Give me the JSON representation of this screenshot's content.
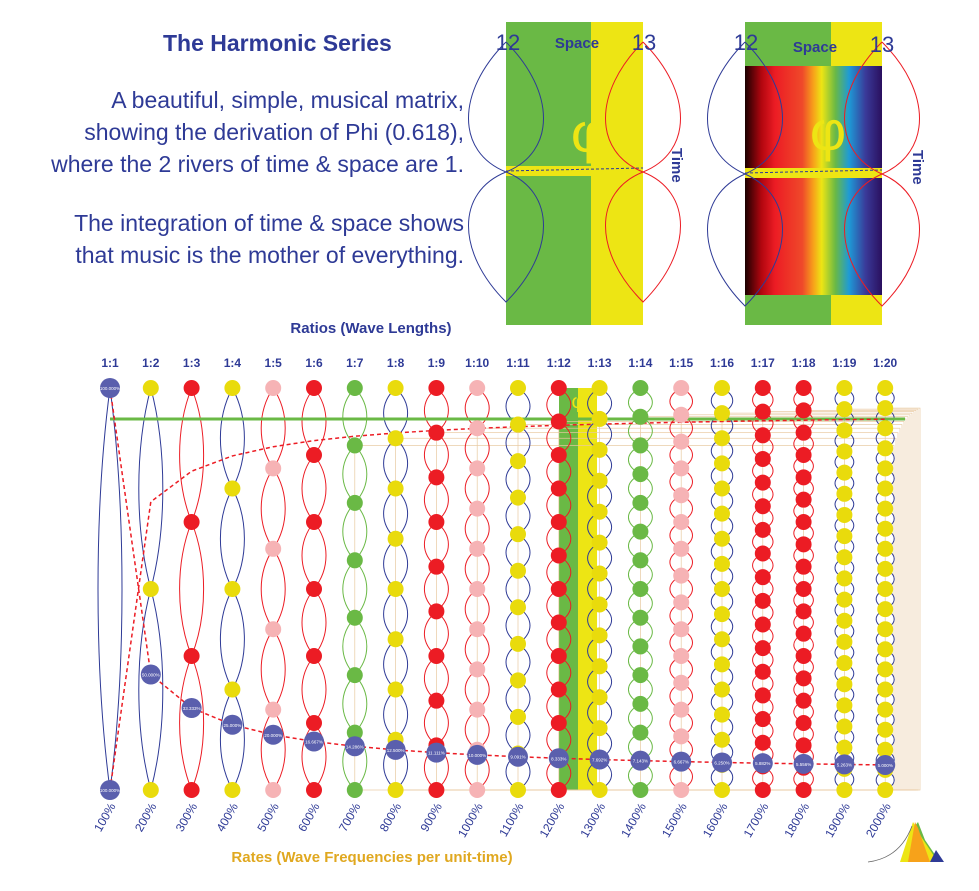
{
  "title": "The Harmonic Series",
  "paragraph1": [
    "A beautiful, simple, musical matrix,",
    "showing the derivation of Phi (0.618),",
    "where the 2 rivers of time & space are 1."
  ],
  "paragraph2": [
    "The integration of time & space shows",
    "that music is the mother of everything."
  ],
  "panel": {
    "left_number": "12",
    "right_number": "13",
    "space_label": "Space",
    "time_label": "Time",
    "phi_symbol": "φ"
  },
  "ratios_label": "Ratios (Wave Lengths)",
  "rates_label": "Rates (Wave Frequencies per unit-time)",
  "colors": {
    "blue": "#5a5fad",
    "yellow": "#e9db0c",
    "red": "#ec1c24",
    "pink": "#f6b3b5",
    "green": "#6ab945",
    "dark_blue": "#2e3a96",
    "orange_text": "#e0a820"
  },
  "chart_data": {
    "type": "diagram",
    "ratios": [
      "1:1",
      "1:2",
      "1:3",
      "1:4",
      "1:5",
      "1:6",
      "1:7",
      "1:8",
      "1:9",
      "1:10",
      "1:11",
      "1:12",
      "1:13",
      "1:14",
      "1:15",
      "1:16",
      "1:17",
      "1:18",
      "1:19",
      "1:20"
    ],
    "rates": [
      "100%",
      "200%",
      "300%",
      "400%",
      "500%",
      "600%",
      "700%",
      "800%",
      "900%",
      "1000%",
      "1100%",
      "1200%",
      "1300%",
      "1400%",
      "1500%",
      "1600%",
      "1700%",
      "1800%",
      "1900%",
      "2000%"
    ],
    "wavelength_labels": [
      "100.000%",
      "50.000%",
      "33.333%",
      "25.000%",
      "20.000%",
      "16.667%",
      "14.286%",
      "12.500%",
      "11.111%",
      "10.000%",
      "9.091%",
      "8.333%",
      "7.692%",
      "7.143%",
      "6.667%",
      "6.250%",
      "5.882%",
      "5.556%",
      "5.263%",
      "5.000%"
    ],
    "column_colors": [
      "blue",
      "yellow",
      "red",
      "yellow",
      "pink",
      "red",
      "green",
      "yellow",
      "red",
      "pink",
      "yellow",
      "red",
      "yellow",
      "green",
      "pink",
      "yellow",
      "red",
      "red",
      "yellow",
      "yellow"
    ]
  }
}
